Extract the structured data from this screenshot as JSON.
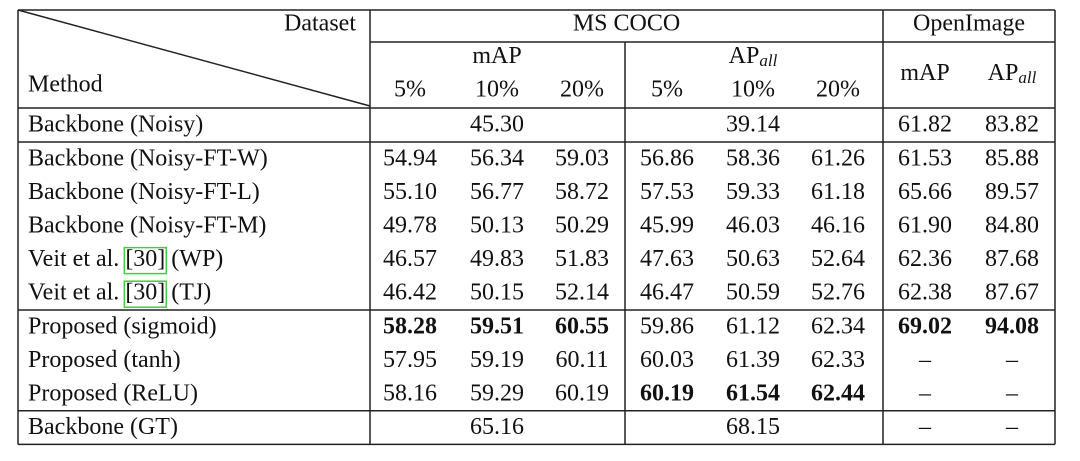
{
  "table": {
    "header": {
      "dataset": "Dataset",
      "method": "Method",
      "groups": [
        {
          "name": "MS COCO",
          "metrics": [
            {
              "text": "mAP",
              "levels": [
                "5%",
                "10%",
                "20%"
              ]
            },
            {
              "text": "AP",
              "sub": "all",
              "levels": [
                "5%",
                "10%",
                "20%"
              ]
            }
          ]
        },
        {
          "name": "OpenImage",
          "metrics": [
            {
              "text": "mAP"
            },
            {
              "text": "AP",
              "sub": "all"
            }
          ]
        }
      ]
    },
    "sections": [
      [
        {
          "method": "Backbone (Noisy)",
          "cells": [
            "45.30",
            "39.14",
            "61.82",
            "83.82"
          ]
        }
      ],
      [
        {
          "method": "Backbone (Noisy-FT-W)",
          "cells": [
            "54.94",
            "56.34",
            "59.03",
            "56.86",
            "58.36",
            "61.26",
            "61.53",
            "85.88"
          ]
        },
        {
          "method": "Backbone (Noisy-FT-L)",
          "cells": [
            "55.10",
            "56.77",
            "58.72",
            "57.53",
            "59.33",
            "61.18",
            "65.66",
            "89.57"
          ]
        },
        {
          "method": "Backbone (Noisy-FT-M)",
          "cells": [
            "49.78",
            "50.13",
            "50.29",
            "45.99",
            "46.03",
            "46.16",
            "61.90",
            "84.80"
          ]
        },
        {
          "method": {
            "before": "Veit et al.",
            "cite": "[30]",
            "after": "(WP)"
          },
          "cells": [
            "46.57",
            "49.83",
            "51.83",
            "47.63",
            "50.63",
            "52.64",
            "62.36",
            "87.68"
          ]
        },
        {
          "method": {
            "before": "Veit et al.",
            "cite": "[30]",
            "after": "(TJ)"
          },
          "cells": [
            "46.42",
            "50.15",
            "52.14",
            "46.47",
            "50.59",
            "52.76",
            "62.38",
            "87.67"
          ]
        }
      ],
      [
        {
          "method": "Proposed (sigmoid)",
          "cells": [
            "58.28",
            "59.51",
            "60.55",
            "59.86",
            "61.12",
            "62.34",
            "69.02",
            "94.08"
          ],
          "bold": [
            0,
            1,
            2,
            6,
            7
          ]
        },
        {
          "method": "Proposed (tanh)",
          "cells": [
            "57.95",
            "59.19",
            "60.11",
            "60.03",
            "61.39",
            "62.33",
            "–",
            "–"
          ]
        },
        {
          "method": "Proposed (ReLU)",
          "cells": [
            "58.16",
            "59.29",
            "60.19",
            "60.19",
            "61.54",
            "62.44",
            "–",
            "–"
          ],
          "bold": [
            3,
            4,
            5
          ]
        }
      ],
      [
        {
          "method": "Backbone (GT)",
          "cells": [
            "65.16",
            "68.15",
            "–",
            "–"
          ]
        }
      ]
    ]
  }
}
